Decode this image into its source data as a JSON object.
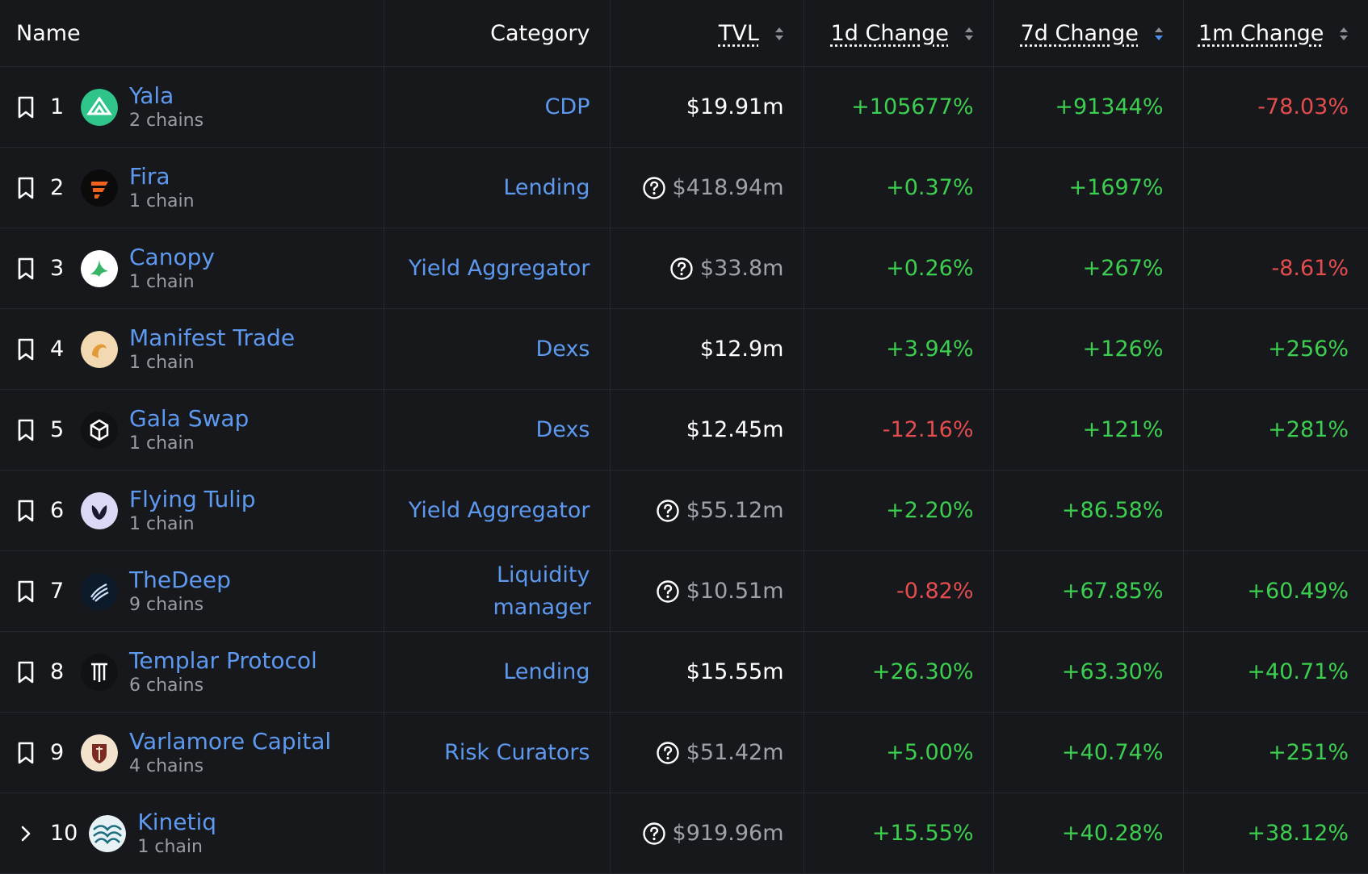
{
  "header": {
    "name": "Name",
    "category": "Category",
    "tvl": "TVL",
    "change_1d": "1d Change",
    "change_7d": "7d Change",
    "change_1m": "1m Change"
  },
  "colors": {
    "link": "#5e99f0",
    "positive": "#3ccf4f",
    "negative": "#e44d4d",
    "active_sort": "#4a8ff0"
  },
  "rows": [
    {
      "rank": "1",
      "name": "Yala",
      "chains": "2 chains",
      "category": "CDP",
      "tvl": "$19.91m",
      "d1": "+105677%",
      "d7": "+91344%",
      "m1": "-78.03%",
      "icon": "bookmark-icon",
      "logo": "yala-logo"
    },
    {
      "rank": "2",
      "name": "Fira",
      "chains": "1 chain",
      "category": "Lending",
      "tvl": "$418.94m",
      "d1": "+0.37%",
      "d7": "+1697%",
      "m1": "",
      "icon": "bookmark-icon",
      "logo": "fira-logo"
    },
    {
      "rank": "3",
      "name": "Canopy",
      "chains": "1 chain",
      "category": "Yield Aggregator",
      "tvl": "$33.8m",
      "d1": "+0.26%",
      "d7": "+267%",
      "m1": "-8.61%",
      "icon": "bookmark-icon",
      "logo": "canopy-logo"
    },
    {
      "rank": "4",
      "name": "Manifest Trade",
      "chains": "1 chain",
      "category": "Dexs",
      "tvl": "$12.9m",
      "d1": "+3.94%",
      "d7": "+126%",
      "m1": "+256%",
      "icon": "bookmark-icon",
      "logo": "manifest-logo"
    },
    {
      "rank": "5",
      "name": "Gala Swap",
      "chains": "1 chain",
      "category": "Dexs",
      "tvl": "$12.45m",
      "d1": "-12.16%",
      "d7": "+121%",
      "m1": "+281%",
      "icon": "bookmark-icon",
      "logo": "gala-logo"
    },
    {
      "rank": "6",
      "name": "Flying Tulip",
      "chains": "1 chain",
      "category": "Yield Aggregator",
      "tvl": "$55.12m",
      "d1": "+2.20%",
      "d7": "+86.58%",
      "m1": "",
      "icon": "bookmark-icon",
      "logo": "tulip-logo"
    },
    {
      "rank": "7",
      "name": "TheDeep",
      "chains": "9 chains",
      "category": "Liquidity manager",
      "tvl": "$10.51m",
      "d1": "-0.82%",
      "d7": "+67.85%",
      "m1": "+60.49%",
      "icon": "bookmark-icon",
      "logo": "thedeep-logo"
    },
    {
      "rank": "8",
      "name": "Templar Protocol",
      "chains": "6 chains",
      "category": "Lending",
      "tvl": "$15.55m",
      "d1": "+26.30%",
      "d7": "+63.30%",
      "m1": "+40.71%",
      "icon": "bookmark-icon",
      "logo": "templar-logo"
    },
    {
      "rank": "9",
      "name": "Varlamore Capital",
      "chains": "4 chains",
      "category": "Risk Curators",
      "tvl": "$51.42m",
      "d1": "+5.00%",
      "d7": "+40.74%",
      "m1": "+251%",
      "icon": "bookmark-icon",
      "logo": "varlamore-logo"
    },
    {
      "rank": "10",
      "name": "Kinetiq",
      "chains": "1 chain",
      "category": "",
      "tvl": "$919.96m",
      "d1": "+15.55%",
      "d7": "+40.28%",
      "m1": "+38.12%",
      "icon": "chevron-right-icon",
      "logo": "kinetiq-logo"
    }
  ]
}
